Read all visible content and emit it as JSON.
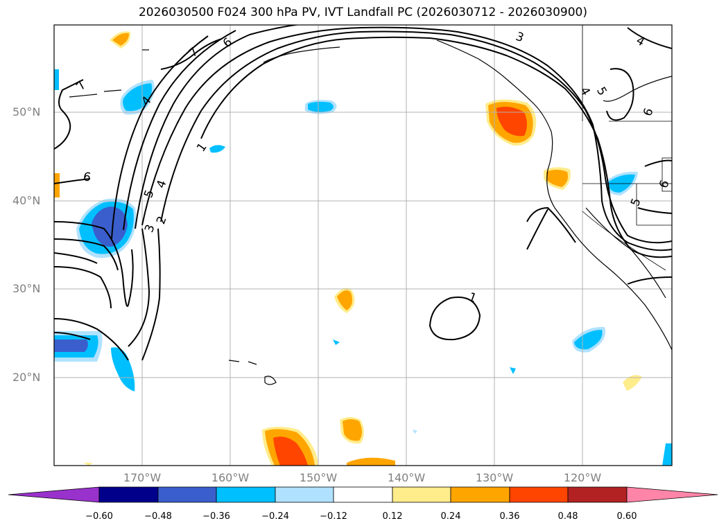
{
  "title": "2026030500 F024 300 hPa PV, IVT Landfall PC (2026030712 - 2026030900)",
  "lat_labels": [
    "50°N",
    "40°N",
    "30°N",
    "20°N"
  ],
  "lon_labels": [
    "170°W",
    "160°W",
    "150°W",
    "140°W",
    "130°W",
    "120°W"
  ],
  "colorbar": {
    "ticks": [
      "−0.60",
      "−0.48",
      "−0.36",
      "−0.24",
      "−0.12",
      "0.12",
      "0.24",
      "0.36",
      "0.48",
      "0.60"
    ],
    "colors": [
      "#9932cc",
      "#00008b",
      "#3a5fcd",
      "#00bfff",
      "#b0e2ff",
      "#ffffff",
      "#ffec8b",
      "#ffa500",
      "#ff4500",
      "#b22222",
      "#ff85a8"
    ]
  },
  "contour_labels": [
    "1",
    "2",
    "3",
    "4",
    "5",
    "6",
    "7",
    "3",
    "4",
    "5",
    "6",
    "1",
    "4",
    "6",
    "5",
    "6",
    "4",
    "7"
  ]
}
